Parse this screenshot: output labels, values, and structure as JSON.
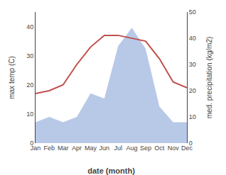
{
  "chart_data": {
    "type": "line",
    "categories": [
      "Jan",
      "Feb",
      "Mar",
      "Apr",
      "May",
      "Jun",
      "Jul",
      "Aug",
      "Sep",
      "Oct",
      "Nov",
      "Dec"
    ],
    "series": [
      {
        "type": "area",
        "axis": "y2",
        "color": "#b8c9e8",
        "values": [
          8,
          10,
          8,
          10,
          19,
          17,
          37,
          44,
          36,
          14,
          8,
          8
        ]
      },
      {
        "type": "line",
        "color": "#c0504d",
        "values": [
          17,
          18,
          20,
          27,
          33,
          37,
          37,
          36,
          35,
          29,
          21,
          19
        ]
      }
    ],
    "xlabel": "date (month)",
    "ylabel": "max temp (C)",
    "y2label": "med. precipitation (kg/m2)",
    "ylim": [
      0,
      45
    ],
    "yticks": [
      0,
      10,
      20,
      30,
      40
    ],
    "y2lim": [
      0,
      50
    ],
    "y2ticks": [
      0,
      10,
      20,
      30,
      40,
      50
    ],
    "grid": false
  }
}
